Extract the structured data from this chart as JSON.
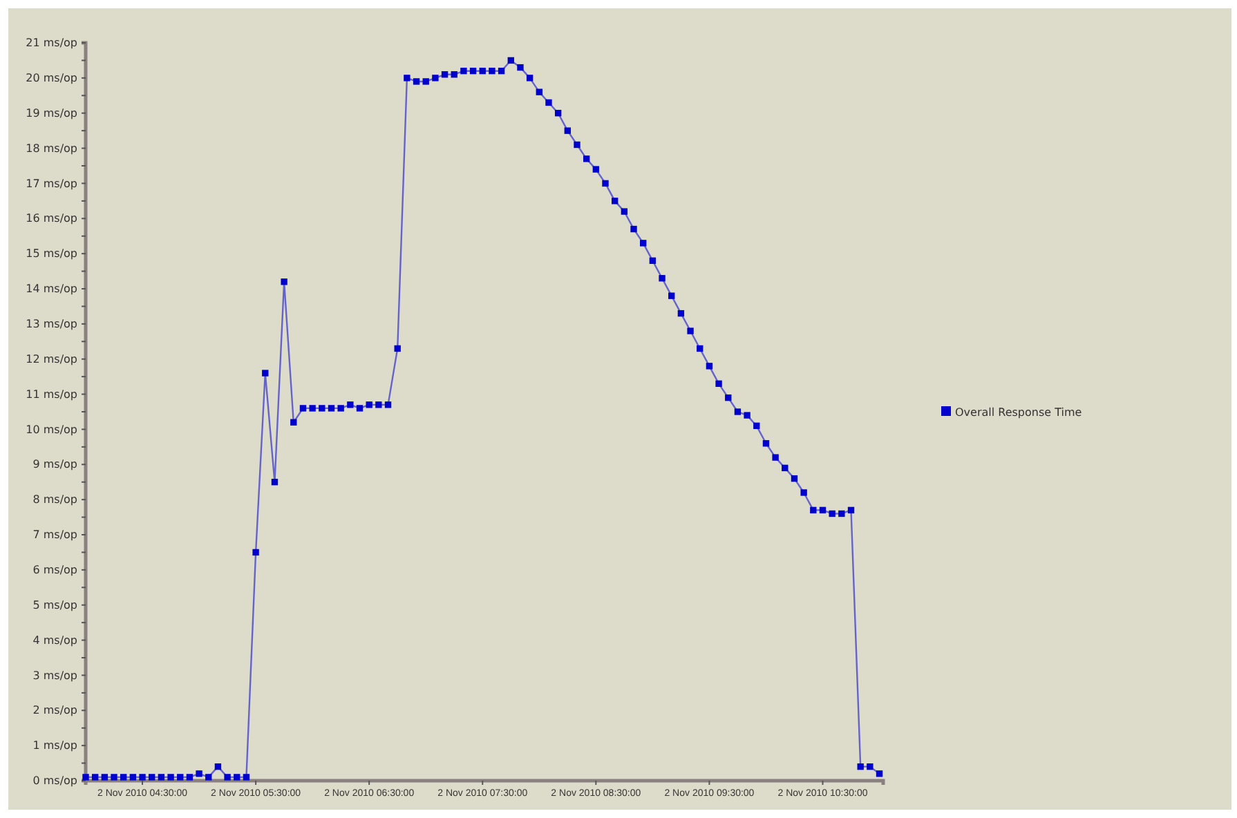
{
  "chart_data": {
    "type": "line",
    "legend": "right",
    "marker": "square",
    "line_style": "solid",
    "grid": false,
    "xlim": [
      "2010-11-02T04:00",
      "2010-11-02T11:02"
    ],
    "xticks": [
      {
        "value": "2010-11-02T04:30",
        "label": "2 Nov 2010 04:30:00"
      },
      {
        "value": "2010-11-02T05:30",
        "label": "2 Nov 2010 05:30:00"
      },
      {
        "value": "2010-11-02T06:30",
        "label": "2 Nov 2010 06:30:00"
      },
      {
        "value": "2010-11-02T07:30",
        "label": "2 Nov 2010 07:30:00"
      },
      {
        "value": "2010-11-02T08:30",
        "label": "2 Nov 2010 08:30:00"
      },
      {
        "value": "2010-11-02T09:30",
        "label": "2 Nov 2010 09:30:00"
      },
      {
        "value": "2010-11-02T10:30",
        "label": "2 Nov 2010 10:30:00"
      }
    ],
    "ylim": [
      0,
      21
    ],
    "yticks": [
      {
        "value": 0,
        "label": "0 ms/op"
      },
      {
        "value": 0.5,
        "label": null
      },
      {
        "value": 1,
        "label": "1 ms/op"
      },
      {
        "value": 1.5,
        "label": null
      },
      {
        "value": 2,
        "label": "2 ms/op"
      },
      {
        "value": 2.5,
        "label": null
      },
      {
        "value": 3,
        "label": "3 ms/op"
      },
      {
        "value": 3.5,
        "label": null
      },
      {
        "value": 4,
        "label": "4 ms/op"
      },
      {
        "value": 4.5,
        "label": null
      },
      {
        "value": 5,
        "label": "5 ms/op"
      },
      {
        "value": 5.5,
        "label": null
      },
      {
        "value": 6,
        "label": "6 ms/op"
      },
      {
        "value": 6.5,
        "label": null
      },
      {
        "value": 7,
        "label": "7 ms/op"
      },
      {
        "value": 7.5,
        "label": null
      },
      {
        "value": 8,
        "label": "8 ms/op"
      },
      {
        "value": 8.5,
        "label": null
      },
      {
        "value": 9,
        "label": "9 ms/op"
      },
      {
        "value": 9.5,
        "label": null
      },
      {
        "value": 10,
        "label": "10 ms/op"
      },
      {
        "value": 10.5,
        "label": null
      },
      {
        "value": 11,
        "label": "11 ms/op"
      },
      {
        "value": 11.5,
        "label": null
      },
      {
        "value": 12,
        "label": "12 ms/op"
      },
      {
        "value": 12.5,
        "label": null
      },
      {
        "value": 13,
        "label": "13 ms/op"
      },
      {
        "value": 13.5,
        "label": null
      },
      {
        "value": 14,
        "label": "14 ms/op"
      },
      {
        "value": 14.5,
        "label": null
      },
      {
        "value": 15,
        "label": "15 ms/op"
      },
      {
        "value": 15.5,
        "label": null
      },
      {
        "value": 16,
        "label": "16 ms/op"
      },
      {
        "value": 16.5,
        "label": null
      },
      {
        "value": 17,
        "label": "17 ms/op"
      },
      {
        "value": 17.5,
        "label": null
      },
      {
        "value": 18,
        "label": "18 ms/op"
      },
      {
        "value": 18.5,
        "label": null
      },
      {
        "value": 19,
        "label": "19 ms/op"
      },
      {
        "value": 19.5,
        "label": null
      },
      {
        "value": 20,
        "label": "20 ms/op"
      },
      {
        "value": 20.5,
        "label": null
      },
      {
        "value": 21,
        "label": "21 ms/op"
      }
    ],
    "x": [
      "2010-11-02T04:00",
      "2010-11-02T04:05",
      "2010-11-02T04:10",
      "2010-11-02T04:15",
      "2010-11-02T04:20",
      "2010-11-02T04:25",
      "2010-11-02T04:30",
      "2010-11-02T04:35",
      "2010-11-02T04:40",
      "2010-11-02T04:45",
      "2010-11-02T04:50",
      "2010-11-02T04:55",
      "2010-11-02T05:00",
      "2010-11-02T05:05",
      "2010-11-02T05:10",
      "2010-11-02T05:15",
      "2010-11-02T05:20",
      "2010-11-02T05:25",
      "2010-11-02T05:30",
      "2010-11-02T05:35",
      "2010-11-02T05:40",
      "2010-11-02T05:45",
      "2010-11-02T05:50",
      "2010-11-02T05:55",
      "2010-11-02T06:00",
      "2010-11-02T06:05",
      "2010-11-02T06:10",
      "2010-11-02T06:15",
      "2010-11-02T06:20",
      "2010-11-02T06:25",
      "2010-11-02T06:30",
      "2010-11-02T06:35",
      "2010-11-02T06:40",
      "2010-11-02T06:45",
      "2010-11-02T06:50",
      "2010-11-02T06:55",
      "2010-11-02T07:00",
      "2010-11-02T07:05",
      "2010-11-02T07:10",
      "2010-11-02T07:15",
      "2010-11-02T07:20",
      "2010-11-02T07:25",
      "2010-11-02T07:30",
      "2010-11-02T07:35",
      "2010-11-02T07:40",
      "2010-11-02T07:45",
      "2010-11-02T07:50",
      "2010-11-02T07:55",
      "2010-11-02T08:00",
      "2010-11-02T08:05",
      "2010-11-02T08:10",
      "2010-11-02T08:15",
      "2010-11-02T08:20",
      "2010-11-02T08:25",
      "2010-11-02T08:30",
      "2010-11-02T08:35",
      "2010-11-02T08:40",
      "2010-11-02T08:45",
      "2010-11-02T08:50",
      "2010-11-02T08:55",
      "2010-11-02T09:00",
      "2010-11-02T09:05",
      "2010-11-02T09:10",
      "2010-11-02T09:15",
      "2010-11-02T09:20",
      "2010-11-02T09:25",
      "2010-11-02T09:30",
      "2010-11-02T09:35",
      "2010-11-02T09:40",
      "2010-11-02T09:45",
      "2010-11-02T09:50",
      "2010-11-02T09:55",
      "2010-11-02T10:00",
      "2010-11-02T10:05",
      "2010-11-02T10:10",
      "2010-11-02T10:15",
      "2010-11-02T10:20",
      "2010-11-02T10:25",
      "2010-11-02T10:30",
      "2010-11-02T10:35",
      "2010-11-02T10:40",
      "2010-11-02T10:45",
      "2010-11-02T10:50",
      "2010-11-02T10:55",
      "2010-11-02T11:00"
    ],
    "series": [
      {
        "name": "Overall Response Time",
        "color": "#0000cc",
        "values": [
          0.1,
          0.1,
          0.1,
          0.1,
          0.1,
          0.1,
          0.1,
          0.1,
          0.1,
          0.1,
          0.1,
          0.1,
          0.2,
          0.1,
          0.4,
          0.1,
          0.1,
          0.1,
          6.5,
          11.6,
          8.5,
          14.2,
          10.2,
          10.6,
          10.6,
          10.6,
          10.6,
          10.6,
          10.7,
          10.6,
          10.7,
          10.7,
          10.7,
          12.3,
          20.0,
          19.9,
          19.9,
          20.0,
          20.1,
          20.1,
          20.2,
          20.2,
          20.2,
          20.2,
          20.2,
          20.5,
          20.3,
          20.0,
          19.6,
          19.3,
          19.0,
          18.5,
          18.1,
          17.7,
          17.4,
          17.0,
          16.5,
          16.2,
          15.7,
          15.3,
          14.8,
          14.3,
          13.8,
          13.3,
          12.8,
          12.3,
          11.8,
          11.3,
          10.9,
          10.5,
          10.4,
          10.1,
          9.6,
          9.2,
          8.9,
          8.6,
          8.2,
          7.7,
          7.7,
          7.6,
          7.6,
          7.7,
          0.4,
          0.4,
          0.2
        ]
      }
    ]
  }
}
